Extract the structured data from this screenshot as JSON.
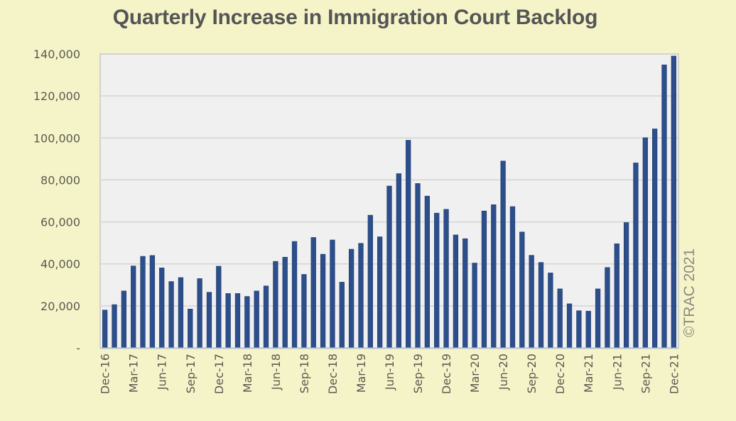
{
  "chart_data": {
    "type": "bar",
    "title": "Quarterly Increase in Immigration Court Backlog",
    "xlabel": "",
    "ylabel": "",
    "ylim": [
      0,
      140000
    ],
    "yticks": [
      0,
      20000,
      40000,
      60000,
      80000,
      100000,
      120000,
      140000
    ],
    "ytick_labels": [
      "-",
      "20,000",
      "40,000",
      "60,000",
      "80,000",
      "100,000",
      "120,000",
      "140,000"
    ],
    "grid": true,
    "legend": "none",
    "bar_color": "#2c4f8c",
    "annotation": "©TRAC 2021",
    "categories": [
      "Dec-16",
      "Jan-17",
      "Feb-17",
      "Mar-17",
      "Apr-17",
      "May-17",
      "Jun-17",
      "Jul-17",
      "Aug-17",
      "Sep-17",
      "Oct-17",
      "Nov-17",
      "Dec-17",
      "Jan-18",
      "Feb-18",
      "Mar-18",
      "Apr-18",
      "May-18",
      "Jun-18",
      "Jul-18",
      "Aug-18",
      "Sep-18",
      "Oct-18",
      "Nov-18",
      "Dec-18",
      "Jan-19",
      "Feb-19",
      "Mar-19",
      "Apr-19",
      "May-19",
      "Jun-19",
      "Jul-19",
      "Aug-19",
      "Sep-19",
      "Oct-19",
      "Nov-19",
      "Dec-19",
      "Jan-20",
      "Feb-20",
      "Mar-20",
      "Apr-20",
      "May-20",
      "Jun-20",
      "Jul-20",
      "Aug-20",
      "Sep-20",
      "Oct-20",
      "Nov-20",
      "Dec-20",
      "Jan-21",
      "Feb-21",
      "Mar-21",
      "Apr-21",
      "May-21",
      "Jun-21",
      "Jul-21",
      "Aug-21",
      "Sep-21",
      "Oct-21",
      "Nov-21",
      "Dec-21"
    ],
    "tick_labels_shown": [
      "Dec-16",
      "Mar-17",
      "Jun-17",
      "Sep-17",
      "Dec-17",
      "Mar-18",
      "Jun-18",
      "Sep-18",
      "Dec-18",
      "Mar-19",
      "Jun-19",
      "Sep-19",
      "Dec-19",
      "Mar-20",
      "Jun-20",
      "Sep-20",
      "Dec-20",
      "Mar-21",
      "Jun-21",
      "Sep-21",
      "Dec-21"
    ],
    "label_every": 3,
    "values": [
      18000,
      20600,
      27100,
      39000,
      43600,
      44000,
      38100,
      31600,
      33500,
      18500,
      33000,
      26500,
      38900,
      25900,
      25900,
      24500,
      27100,
      29500,
      41200,
      43200,
      50700,
      35000,
      52600,
      44600,
      51400,
      31300,
      47000,
      49800,
      63200,
      52900,
      77100,
      83000,
      98900,
      78300,
      72300,
      64200,
      66000,
      53800,
      52000,
      40400,
      65200,
      68200,
      89000,
      67300,
      55200,
      44100,
      40700,
      35700,
      28100,
      21000,
      17700,
      17500,
      28100,
      38300,
      49600,
      59700,
      88100,
      100100,
      104300,
      134800,
      139000
    ]
  }
}
